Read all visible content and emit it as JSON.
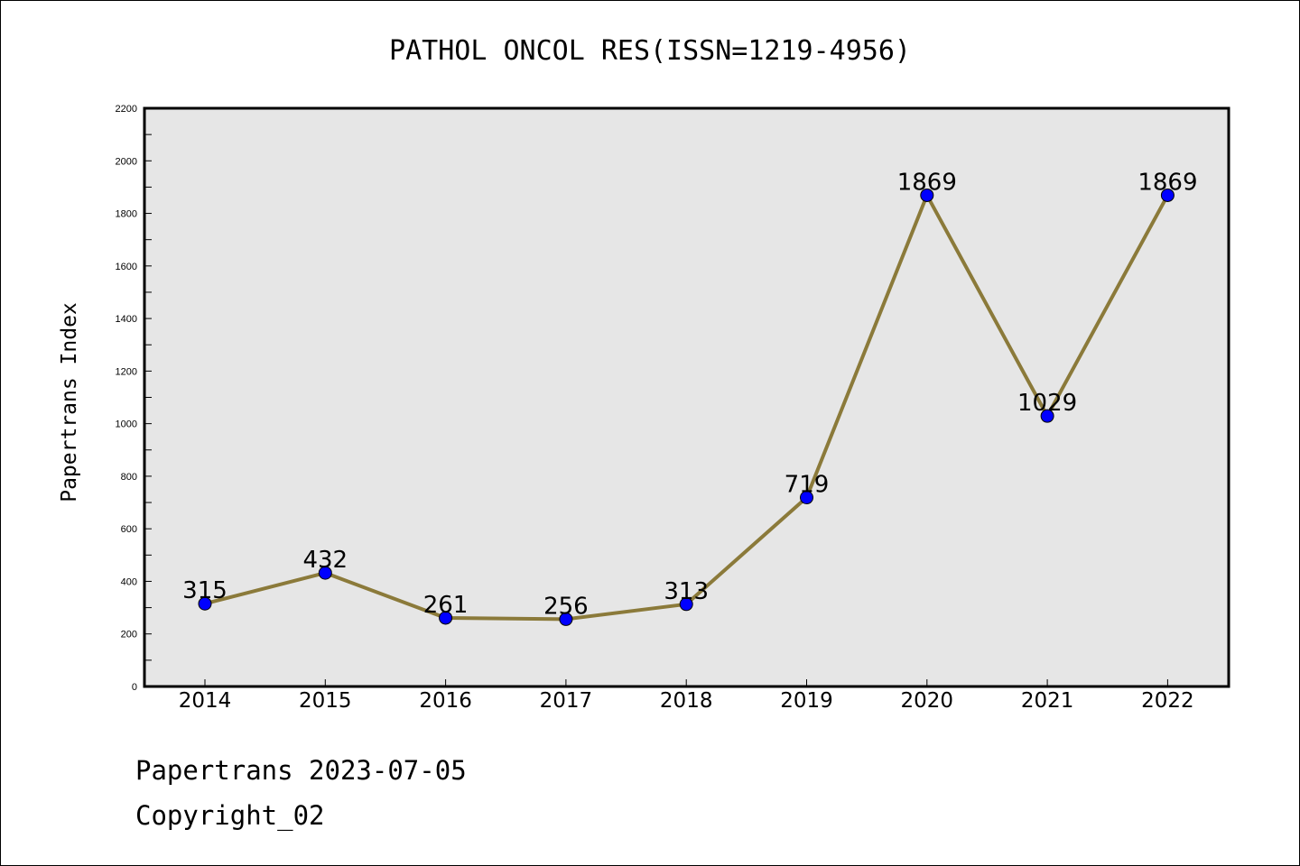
{
  "chart_data": {
    "type": "line",
    "title": "PATHOL ONCOL RES(ISSN=1219-4956)",
    "xlabel": "",
    "ylabel": "Papertrans Index",
    "categories": [
      "2014",
      "2015",
      "2016",
      "2017",
      "2018",
      "2019",
      "2020",
      "2021",
      "2022"
    ],
    "values": [
      315,
      432,
      261,
      256,
      313,
      719,
      1869,
      1029,
      1869
    ],
    "ylim": [
      0,
      2200
    ],
    "yticks": [
      0,
      200,
      400,
      600,
      800,
      1000,
      1200,
      1400,
      1600,
      1800,
      2000,
      2200
    ],
    "grid": false,
    "legend": "none",
    "colors": {
      "line": "#8b7a3a",
      "marker": "#0000ff",
      "plot_bg": "#e6e6e6"
    }
  },
  "footer": {
    "line1": "Papertrans 2023-07-05",
    "line2": "Copyright_02"
  }
}
